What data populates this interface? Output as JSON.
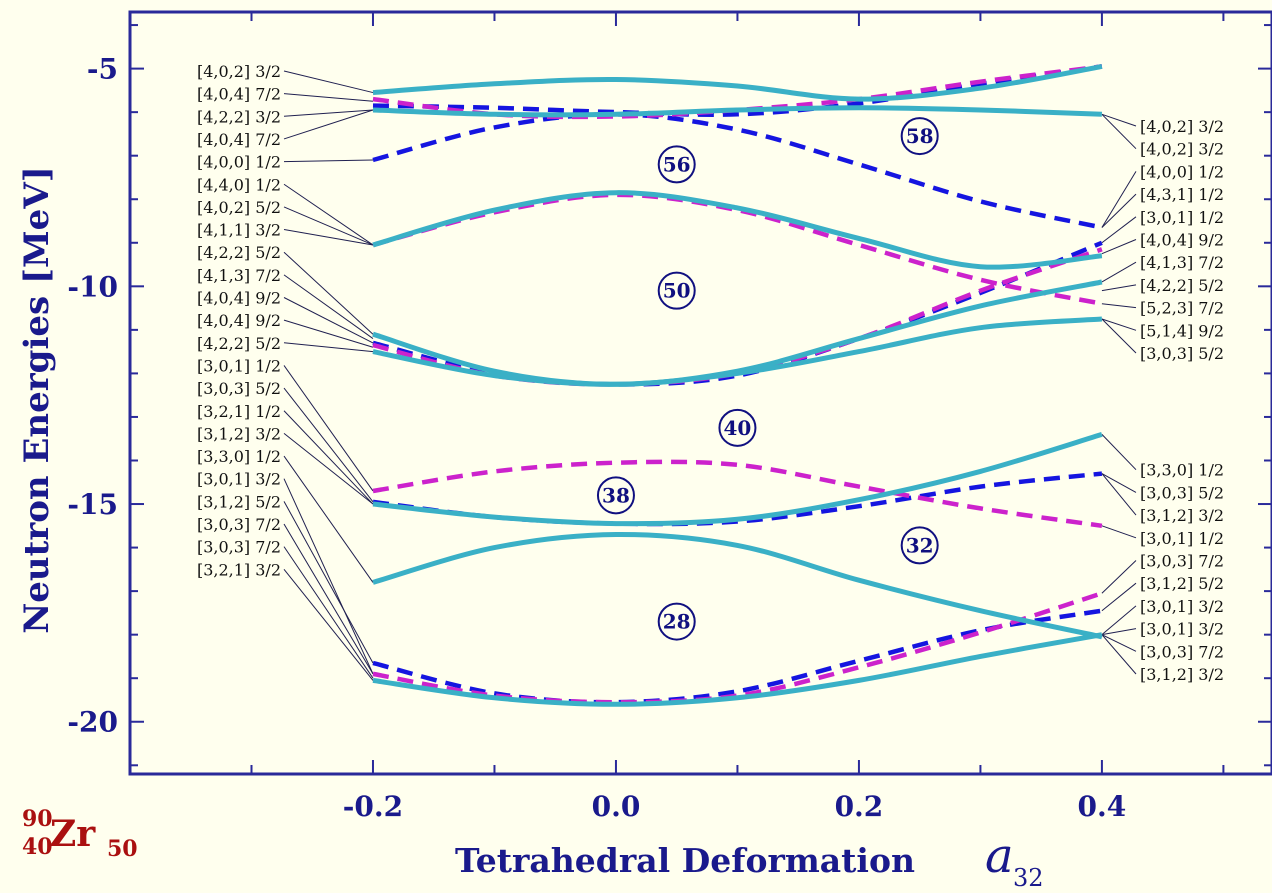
{
  "colors": {
    "background": "#ffffee",
    "frame": "#2a2a9a",
    "axis_text": "#1a1a8c",
    "solid_series": "#3ab0c6",
    "blue_dashed": "#1515e0",
    "magenta_dashed": "#cc22cc",
    "nucleus": "#aa1010"
  },
  "nucleus": {
    "mass_number": "90",
    "atomic_number": "40",
    "symbol": "Zr",
    "neutron_number": "50"
  },
  "chart_data": {
    "type": "line",
    "xlabel": "Tetrahedral Deformation",
    "xlabel_symbol": "a",
    "xlabel_subscript": "32",
    "ylabel": "Neutron Energies [MeV]",
    "xlim": [
      -0.4,
      0.54
    ],
    "ylim": [
      -21.2,
      -3.7
    ],
    "x_ticks": [
      -0.2,
      0.0,
      0.2,
      0.4
    ],
    "x_tick_labels": [
      "-0.2",
      "0.0",
      "0.2",
      "0.4"
    ],
    "y_ticks": [
      -5,
      -10,
      -15,
      -20
    ],
    "y_tick_labels": [
      "-5",
      "-10",
      "-15",
      "-20"
    ],
    "series": [
      {
        "style": "solid",
        "x": [
          -0.2,
          -0.1,
          0.0,
          0.1,
          0.2,
          0.3,
          0.4
        ],
        "y": [
          -5.55,
          -5.35,
          -5.25,
          -5.4,
          -5.7,
          -5.45,
          -4.95
        ]
      },
      {
        "style": "solid",
        "x": [
          -0.2,
          -0.1,
          0.0,
          0.1,
          0.2,
          0.3,
          0.4
        ],
        "y": [
          -5.95,
          -6.05,
          -6.05,
          -5.95,
          -5.9,
          -5.95,
          -6.05
        ]
      },
      {
        "style": "magenta",
        "x": [
          -0.2,
          -0.1,
          0.0,
          0.1,
          0.2,
          0.3,
          0.4
        ],
        "y": [
          -5.7,
          -6.05,
          -6.1,
          -5.95,
          -5.7,
          -5.3,
          -4.95
        ]
      },
      {
        "style": "blue",
        "x": [
          -0.2,
          -0.1,
          0.0,
          0.1,
          0.2,
          0.3,
          0.4
        ],
        "y": [
          -5.85,
          -5.9,
          -6.0,
          -6.05,
          -5.8,
          -5.35,
          -4.95
        ]
      },
      {
        "style": "blue",
        "x": [
          -0.2,
          -0.1,
          0.0,
          0.1,
          0.2,
          0.3,
          0.4
        ],
        "y": [
          -7.1,
          -6.35,
          -6.05,
          -6.4,
          -7.2,
          -8.05,
          -8.65
        ]
      },
      {
        "style": "solid",
        "x": [
          -0.2,
          -0.1,
          0.0,
          0.1,
          0.2,
          0.3,
          0.4
        ],
        "y": [
          -9.05,
          -8.25,
          -7.85,
          -8.2,
          -8.9,
          -9.55,
          -9.3
        ]
      },
      {
        "style": "magenta",
        "x": [
          -0.2,
          -0.1,
          0.0,
          0.1,
          0.2,
          0.3,
          0.4
        ],
        "y": [
          -9.05,
          -8.3,
          -7.9,
          -8.25,
          -9.05,
          -9.85,
          -10.4
        ]
      },
      {
        "style": "blue",
        "x": [
          -0.2,
          -0.1,
          0.0,
          0.1,
          0.2,
          0.3,
          0.4
        ],
        "y": [
          -11.3,
          -12.0,
          -12.25,
          -12.05,
          -11.2,
          -10.15,
          -9.0
        ]
      },
      {
        "style": "magenta",
        "x": [
          -0.2,
          -0.1,
          0.0,
          0.1,
          0.2,
          0.3,
          0.4
        ],
        "y": [
          -11.35,
          -12.05,
          -12.25,
          -12.0,
          -11.2,
          -10.1,
          -9.15
        ]
      },
      {
        "style": "solid",
        "x": [
          -0.2,
          -0.1,
          0.0,
          0.1,
          0.2,
          0.3,
          0.4
        ],
        "y": [
          -11.1,
          -11.95,
          -12.25,
          -11.95,
          -11.2,
          -10.45,
          -9.9
        ]
      },
      {
        "style": "solid",
        "x": [
          -0.2,
          -0.1,
          0.0,
          0.1,
          0.2,
          0.3,
          0.4
        ],
        "y": [
          -11.5,
          -12.05,
          -12.25,
          -12.0,
          -11.5,
          -10.95,
          -10.75
        ]
      },
      {
        "style": "magenta",
        "x": [
          -0.2,
          -0.1,
          0.0,
          0.1,
          0.2,
          0.3,
          0.4
        ],
        "y": [
          -14.7,
          -14.25,
          -14.05,
          -14.1,
          -14.6,
          -15.1,
          -15.5
        ]
      },
      {
        "style": "solid",
        "x": [
          -0.2,
          -0.1,
          0.0,
          0.1,
          0.2,
          0.3,
          0.4
        ],
        "y": [
          -15.0,
          -15.3,
          -15.45,
          -15.35,
          -14.9,
          -14.25,
          -13.4
        ]
      },
      {
        "style": "blue",
        "x": [
          -0.2,
          -0.1,
          0.0,
          0.1,
          0.2,
          0.3,
          0.4
        ],
        "y": [
          -14.95,
          -15.3,
          -15.45,
          -15.4,
          -15.05,
          -14.6,
          -14.3
        ]
      },
      {
        "style": "solid",
        "x": [
          -0.2,
          -0.1,
          0.0,
          0.1,
          0.2,
          0.3,
          0.4
        ],
        "y": [
          -16.8,
          -16.0,
          -15.7,
          -15.95,
          -16.75,
          -17.45,
          -18.05
        ]
      },
      {
        "style": "magenta",
        "x": [
          -0.2,
          -0.1,
          0.0,
          0.1,
          0.2,
          0.3,
          0.4
        ],
        "y": [
          -18.9,
          -19.4,
          -19.55,
          -19.4,
          -18.75,
          -17.95,
          -17.05
        ]
      },
      {
        "style": "blue",
        "x": [
          -0.2,
          -0.1,
          0.0,
          0.1,
          0.2,
          0.3,
          0.4
        ],
        "y": [
          -18.65,
          -19.35,
          -19.55,
          -19.3,
          -18.6,
          -17.9,
          -17.45
        ]
      },
      {
        "style": "solid",
        "x": [
          -0.2,
          -0.1,
          0.0,
          0.1,
          0.2,
          0.3,
          0.4
        ],
        "y": [
          -19.05,
          -19.45,
          -19.6,
          -19.45,
          -19.05,
          -18.5,
          -18.0
        ]
      }
    ],
    "magic_numbers": [
      {
        "label": "58",
        "x": 0.25,
        "y": -6.55
      },
      {
        "label": "56",
        "x": 0.05,
        "y": -7.2
      },
      {
        "label": "50",
        "x": 0.05,
        "y": -10.1
      },
      {
        "label": "40",
        "x": 0.1,
        "y": -13.25
      },
      {
        "label": "38",
        "x": 0.0,
        "y": -14.8
      },
      {
        "label": "32",
        "x": 0.25,
        "y": -15.95
      },
      {
        "label": "28",
        "x": 0.05,
        "y": -17.7
      }
    ],
    "left_labels": [
      {
        "text": "[4,0,2] 3/2",
        "target": -5.55
      },
      {
        "text": "[4,0,4] 7/2",
        "target": -5.75
      },
      {
        "text": "[4,2,2] 3/2",
        "target": -5.95
      },
      {
        "text": "[4,0,4] 7/2",
        "target": -5.95
      },
      {
        "text": "[4,0,0] 1/2",
        "target": -7.1
      },
      {
        "text": "[4,4,0] 1/2",
        "target": -9.05
      },
      {
        "text": "[4,0,2] 5/2",
        "target": -9.05
      },
      {
        "text": "[4,1,1] 3/2",
        "target": -9.05
      },
      {
        "text": "[4,2,2] 5/2",
        "target": -11.1
      },
      {
        "text": "[4,1,3] 7/2",
        "target": -11.2
      },
      {
        "text": "[4,0,4] 9/2",
        "target": -11.3
      },
      {
        "text": "[4,0,4] 9/2",
        "target": -11.4
      },
      {
        "text": "[4,2,2] 5/2",
        "target": -11.5
      },
      {
        "text": "[3,0,1] 1/2",
        "target": -14.7
      },
      {
        "text": "[3,0,3] 5/2",
        "target": -14.95
      },
      {
        "text": "[3,2,1] 1/2",
        "target": -15.0
      },
      {
        "text": "[3,1,2] 3/2",
        "target": -15.0
      },
      {
        "text": "[3,3,0] 1/2",
        "target": -16.8
      },
      {
        "text": "[3,0,1] 3/2",
        "target": -18.9
      },
      {
        "text": "[3,1,2] 5/2",
        "target": -18.65
      },
      {
        "text": "[3,0,3] 7/2",
        "target": -18.9
      },
      {
        "text": "[3,0,3] 7/2",
        "target": -19.0
      },
      {
        "text": "[3,2,1] 3/2",
        "target": -19.05
      }
    ],
    "right_labels": [
      {
        "text": "[4,0,2] 3/2",
        "target": -6.05
      },
      {
        "text": "[4,0,2] 3/2",
        "target": -6.05
      },
      {
        "text": "[4,0,0] 1/2",
        "target": -8.65
      },
      {
        "text": "[4,3,1] 1/2",
        "target": -8.65
      },
      {
        "text": "[3,0,1] 1/2",
        "target": -9.0
      },
      {
        "text": "[4,0,4] 9/2",
        "target": -9.25
      },
      {
        "text": "[4,1,3] 7/2",
        "target": -9.9
      },
      {
        "text": "[4,2,2] 5/2",
        "target": -10.1
      },
      {
        "text": "[5,2,3] 7/2",
        "target": -10.4
      },
      {
        "text": "[5,1,4] 9/2",
        "target": -10.75
      },
      {
        "text": "[3,0,3] 5/2",
        "target": -10.75
      },
      {
        "text": "[3,3,0] 1/2",
        "target": -13.4
      },
      {
        "text": "[3,0,3] 5/2",
        "target": -14.3
      },
      {
        "text": "[3,1,2] 3/2",
        "target": -14.3
      },
      {
        "text": "[3,0,1] 1/2",
        "target": -15.5
      },
      {
        "text": "[3,0,3] 7/2",
        "target": -17.05
      },
      {
        "text": "[3,1,2] 5/2",
        "target": -17.45
      },
      {
        "text": "[3,0,1] 3/2",
        "target": -18.0
      },
      {
        "text": "[3,0,1] 3/2",
        "target": -18.0
      },
      {
        "text": "[3,0,3] 7/2",
        "target": -18.0
      },
      {
        "text": "[3,1,2] 3/2",
        "target": -18.0
      }
    ]
  }
}
